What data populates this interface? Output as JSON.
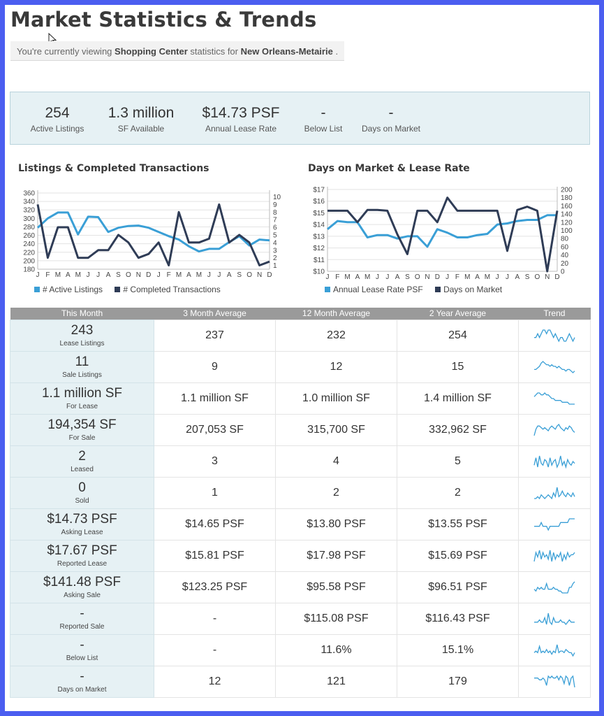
{
  "page": {
    "title": "Market Statistics & Trends",
    "viewing": {
      "prefix": "You're currently viewing ",
      "property_type": "Shopping Center",
      "middle": " statistics for ",
      "market": "New Orleans-Metairie",
      "suffix": " ."
    }
  },
  "summary": [
    {
      "value": "254",
      "label": "Active Listings"
    },
    {
      "value": "1.3 million",
      "label": "SF Available"
    },
    {
      "value": "$14.73 PSF",
      "label": "Annual Lease Rate"
    },
    {
      "value": "-",
      "label": "Below List"
    },
    {
      "value": "-",
      "label": "Days on Market"
    }
  ],
  "chart_data": [
    {
      "type": "line",
      "title": "Listings & Completed Transactions",
      "categories": [
        "J",
        "F",
        "M",
        "A",
        "M",
        "J",
        "J",
        "A",
        "S",
        "O",
        "N",
        "D",
        "J",
        "F",
        "M",
        "A",
        "M",
        "J",
        "J",
        "A",
        "S",
        "O",
        "N",
        "D"
      ],
      "y_left": {
        "ticks": [
          360,
          340,
          320,
          300,
          280,
          260,
          240,
          220,
          200,
          180
        ],
        "range": [
          180,
          360
        ]
      },
      "y_right": {
        "ticks": [
          10,
          9,
          8,
          7,
          6,
          5,
          4,
          3,
          2,
          1
        ],
        "range": [
          0.5,
          10.5
        ]
      },
      "grid": true,
      "legend_position": "bottom",
      "colors": {
        "left_series": "#3a9fd6",
        "right_series": "#2f3c56"
      },
      "series": [
        {
          "name": "# Active Listings",
          "axis": "left",
          "values": [
            278,
            300,
            314,
            314,
            262,
            304,
            303,
            268,
            278,
            282,
            283,
            278,
            268,
            258,
            250,
            234,
            222,
            228,
            228,
            244,
            258,
            236,
            250,
            248
          ]
        },
        {
          "name": "# Completed Transactions",
          "axis": "right",
          "values": [
            9,
            2,
            6,
            6,
            2,
            2,
            3,
            3,
            5,
            4,
            2,
            2.5,
            4,
            1,
            8,
            4,
            4,
            4.5,
            9,
            4,
            5,
            4,
            1,
            1.5
          ]
        }
      ]
    },
    {
      "type": "line",
      "title": "Days on Market & Lease Rate",
      "categories": [
        "J",
        "F",
        "M",
        "A",
        "M",
        "J",
        "J",
        "A",
        "S",
        "O",
        "N",
        "D",
        "J",
        "F",
        "M",
        "A",
        "M",
        "J",
        "J",
        "A",
        "S",
        "O",
        "N",
        "D"
      ],
      "y_left": {
        "ticks": [
          "$17",
          "$16",
          "$15",
          "$14",
          "$13",
          "$12",
          "$11",
          "$10"
        ],
        "range": [
          10,
          17
        ]
      },
      "y_right": {
        "ticks": [
          200,
          180,
          160,
          140,
          120,
          100,
          80,
          60,
          40,
          20,
          0
        ],
        "range": [
          0,
          200
        ]
      },
      "grid": true,
      "legend_position": "bottom",
      "colors": {
        "left_series": "#3a9fd6",
        "right_series": "#2f3c56"
      },
      "series": [
        {
          "name": "Annual Lease Rate PSF",
          "axis": "left",
          "values": [
            13.6,
            14.3,
            14.2,
            14.2,
            12.9,
            13.1,
            13.1,
            12.8,
            13.0,
            13.0,
            12.1,
            13.6,
            13.3,
            12.9,
            12.9,
            13.1,
            13.2,
            14.0,
            14.1,
            14.3,
            14.4,
            14.4,
            14.8,
            14.8
          ]
        },
        {
          "name": "Days on Market",
          "axis": "right",
          "values": [
            148,
            148,
            148,
            120,
            150,
            150,
            148,
            90,
            42,
            148,
            148,
            120,
            180,
            148,
            148,
            148,
            148,
            148,
            50,
            150,
            158,
            148,
            0,
            148
          ]
        }
      ]
    }
  ],
  "table": {
    "headers": [
      "This Month",
      "3 Month Average",
      "12 Month Average",
      "2 Year Average",
      "Trend"
    ],
    "rows": [
      {
        "value": "243",
        "label": "Lease Listings",
        "avg3": "237",
        "avg12": "232",
        "avg24": "254",
        "trend": [
          5,
          5,
          6,
          5,
          6,
          7,
          7,
          6,
          7,
          7,
          6,
          5,
          6,
          5,
          4,
          5,
          5,
          4,
          4,
          5,
          6,
          5,
          4,
          5
        ]
      },
      {
        "value": "11",
        "label": "Sale Listings",
        "avg3": "9",
        "avg12": "12",
        "avg24": "15",
        "trend": [
          4,
          4,
          5,
          6,
          8,
          9,
          8,
          7,
          7,
          6,
          7,
          6,
          6,
          5,
          6,
          5,
          4,
          4,
          3,
          4,
          4,
          3,
          2,
          3
        ]
      },
      {
        "value": "1.1 million SF",
        "label": "For Lease",
        "avg3": "1.1 million SF",
        "avg12": "1.0 million SF",
        "avg24": "1.4 million SF",
        "trend": [
          6,
          7,
          8,
          8,
          7,
          7,
          8,
          7,
          7,
          6,
          5,
          5,
          4,
          4,
          4,
          4,
          3,
          3,
          3,
          3,
          2,
          2,
          2,
          2
        ]
      },
      {
        "value": "194,354 SF",
        "label": "For Sale",
        "avg3": "207,053 SF",
        "avg12": "315,700 SF",
        "avg24": "332,962 SF",
        "trend": [
          2,
          6,
          8,
          8,
          7,
          6,
          7,
          6,
          5,
          7,
          8,
          7,
          6,
          8,
          9,
          7,
          6,
          5,
          7,
          6,
          8,
          7,
          5,
          4
        ]
      },
      {
        "value": "2",
        "label": "Leased",
        "avg3": "3",
        "avg12": "4",
        "avg24": "5",
        "trend": [
          4,
          8,
          3,
          9,
          5,
          4,
          7,
          6,
          3,
          8,
          4,
          6,
          7,
          3,
          5,
          9,
          4,
          6,
          3,
          7,
          5,
          4,
          6,
          5
        ]
      },
      {
        "value": "0",
        "label": "Sold",
        "avg3": "1",
        "avg12": "2",
        "avg24": "2",
        "trend": [
          3,
          3,
          4,
          3,
          5,
          4,
          3,
          4,
          5,
          4,
          3,
          6,
          4,
          9,
          4,
          5,
          7,
          5,
          4,
          6,
          5,
          4,
          6,
          4
        ]
      },
      {
        "value": "$14.73 PSF",
        "label": "Asking Lease",
        "avg3": "$14.65 PSF",
        "avg12": "$13.80 PSF",
        "avg24": "$13.55 PSF",
        "trend": [
          4,
          4,
          4,
          4,
          5,
          4,
          4,
          4,
          3,
          4,
          4,
          4,
          4,
          4,
          4,
          5,
          5,
          5,
          5,
          5,
          6,
          6,
          6,
          6
        ]
      },
      {
        "value": "$17.67 PSF",
        "label": "Reported Lease",
        "avg3": "$15.81 PSF",
        "avg12": "$17.98 PSF",
        "avg24": "$15.69 PSF",
        "trend": [
          3,
          7,
          5,
          8,
          4,
          7,
          5,
          6,
          4,
          8,
          3,
          7,
          4,
          6,
          5,
          7,
          3,
          6,
          4,
          7,
          5,
          6,
          6,
          7
        ]
      },
      {
        "value": "$141.48 PSF",
        "label": "Asking Sale",
        "avg3": "$123.25 PSF",
        "avg12": "$95.58 PSF",
        "avg24": "$96.51 PSF",
        "trend": [
          4,
          3,
          5,
          4,
          5,
          4,
          4,
          7,
          4,
          4,
          4,
          5,
          4,
          4,
          3,
          3,
          2,
          2,
          2,
          2,
          5,
          5,
          7,
          8
        ]
      },
      {
        "value": "-",
        "label": "Reported Sale",
        "avg3": "-",
        "avg12": "$115.08 PSF",
        "avg24": "$116.43 PSF",
        "trend": [
          5,
          5,
          5,
          6,
          5,
          5,
          7,
          4,
          9,
          5,
          4,
          7,
          5,
          5,
          5,
          6,
          5,
          5,
          4,
          5,
          6,
          5,
          5,
          5
        ]
      },
      {
        "value": "-",
        "label": "Below List",
        "avg3": "-",
        "avg12": "11.6%",
        "avg24": "15.1%",
        "trend": [
          4,
          5,
          4,
          8,
          4,
          5,
          4,
          6,
          4,
          5,
          3,
          5,
          4,
          9,
          4,
          5,
          5,
          4,
          6,
          5,
          4,
          4,
          2,
          4
        ]
      },
      {
        "value": "-",
        "label": "Days on Market",
        "avg3": "12",
        "avg12": "121",
        "avg24": "179",
        "trend": [
          6,
          6,
          6,
          5,
          5,
          6,
          5,
          2,
          7,
          6,
          7,
          6,
          6,
          7,
          5,
          7,
          6,
          3,
          7,
          6,
          2,
          6,
          7,
          1
        ]
      }
    ]
  }
}
